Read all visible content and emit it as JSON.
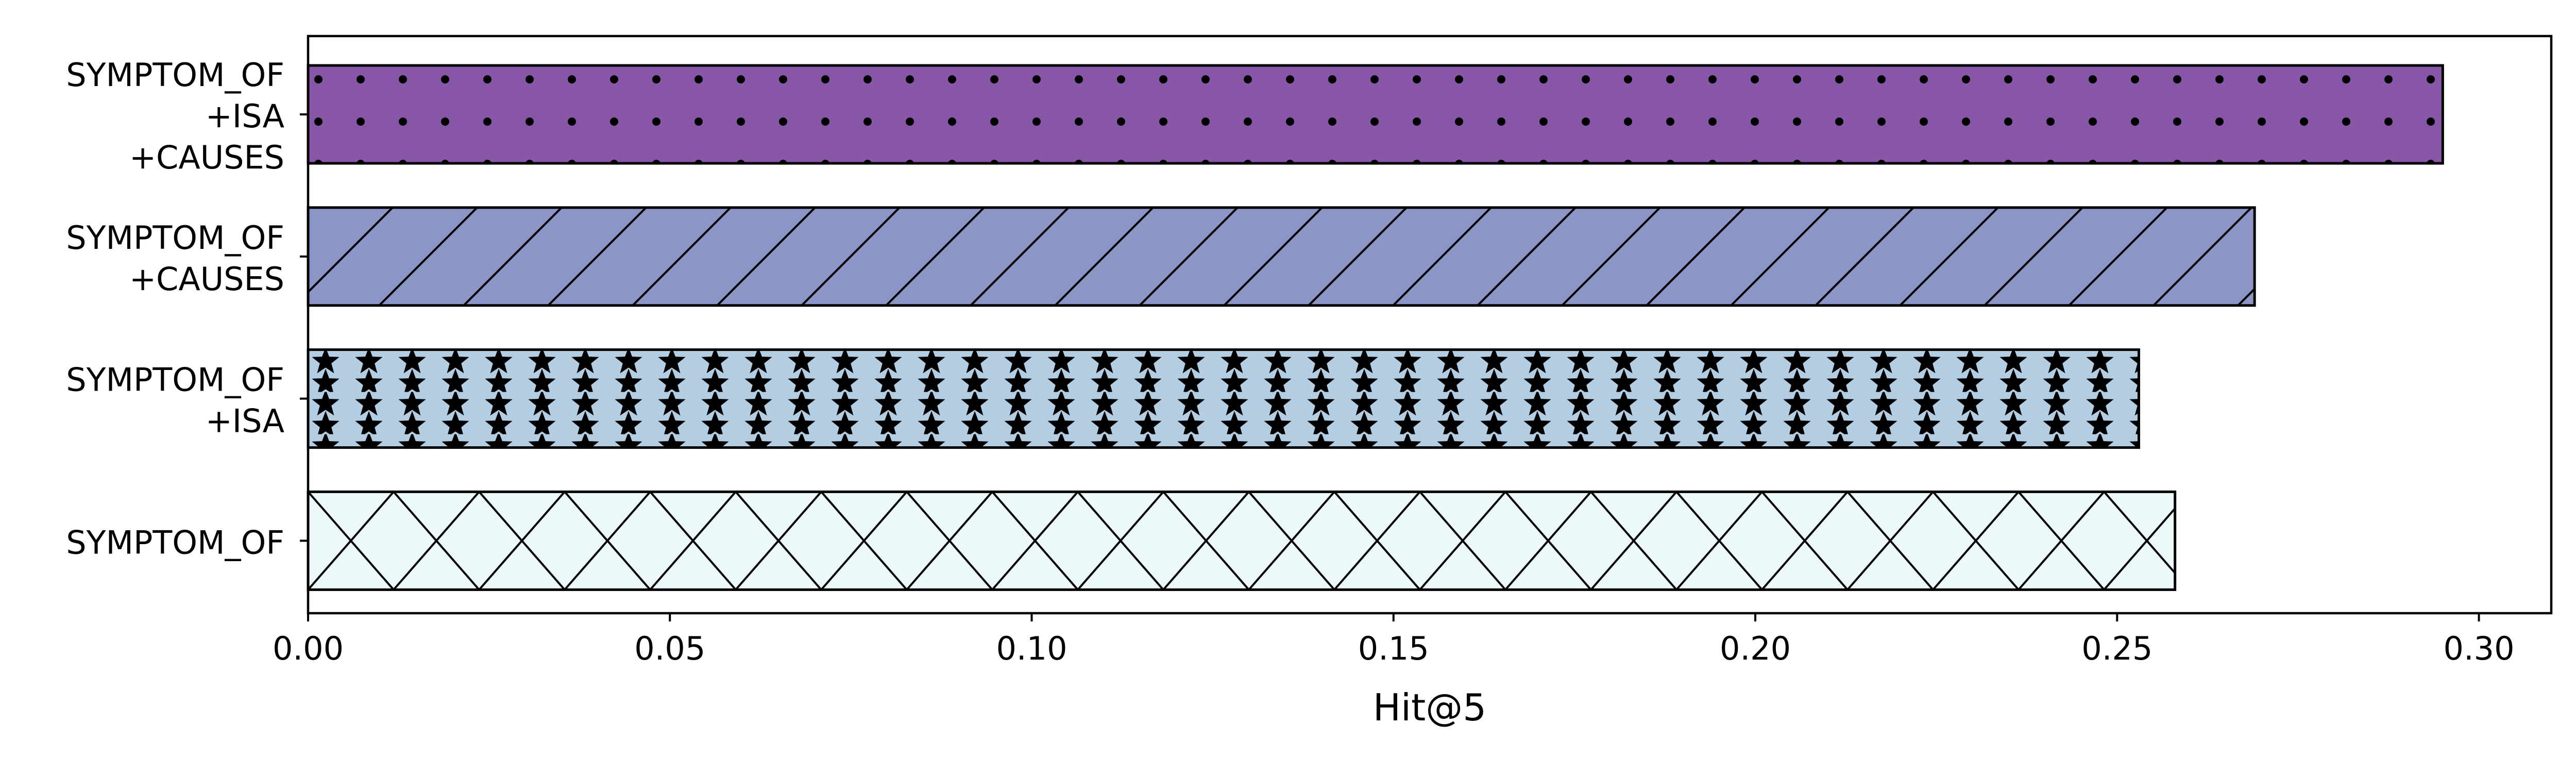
{
  "chart_data": {
    "type": "bar",
    "orientation": "horizontal",
    "xlabel": "Hit@5",
    "ylabel": "",
    "xlim": [
      0,
      0.31
    ],
    "x_ticks": [
      0.0,
      0.05,
      0.1,
      0.15,
      0.2,
      0.25,
      0.3
    ],
    "x_tick_labels": [
      "0.00",
      "0.05",
      "0.10",
      "0.15",
      "0.20",
      "0.25",
      "0.30"
    ],
    "grid": false,
    "bars": [
      {
        "lines": [
          "SYMPTOM_OF",
          "+ISA",
          "+CAUSES"
        ],
        "value": 0.295,
        "color": "#8856a7",
        "pattern": "dots"
      },
      {
        "lines": [
          "SYMPTOM_OF",
          "+CAUSES"
        ],
        "value": 0.269,
        "color": "#8c96c6",
        "pattern": "diagonal"
      },
      {
        "lines": [
          "SYMPTOM_OF",
          "+ISA"
        ],
        "value": 0.253,
        "color": "#b3cde3",
        "pattern": "stars"
      },
      {
        "lines": [
          "SYMPTOM_OF"
        ],
        "value": 0.258,
        "color": "#edf8fb",
        "pattern": "crosshatch"
      }
    ]
  }
}
